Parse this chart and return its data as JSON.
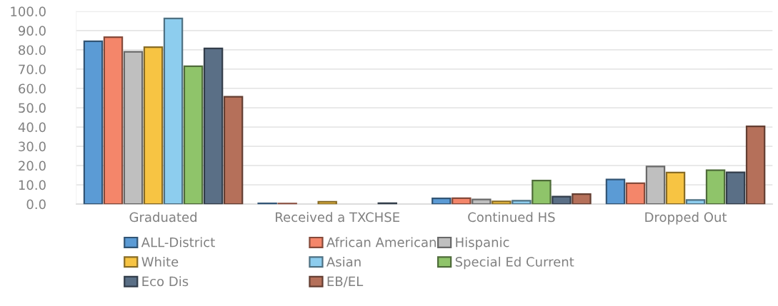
{
  "chart_data": {
    "type": "bar",
    "categories": [
      "Graduated",
      "Received a TXCHSE",
      "Continued HS",
      "Dropped Out"
    ],
    "series": [
      {
        "name": "ALL-District",
        "color": "#5b9bd5",
        "values": [
          84.5,
          0.4,
          3.0,
          12.8
        ]
      },
      {
        "name": "African American",
        "color": "#f4866a",
        "values": [
          86.6,
          0.3,
          3.1,
          10.8
        ]
      },
      {
        "name": "Hispanic",
        "color": "#bfbfbf",
        "values": [
          79.0,
          null,
          2.4,
          19.5
        ]
      },
      {
        "name": "White",
        "color": "#f7c443",
        "values": [
          81.4,
          1.2,
          1.4,
          16.4
        ]
      },
      {
        "name": "Asian",
        "color": "#8dcdee",
        "values": [
          96.3,
          null,
          1.8,
          2.1
        ]
      },
      {
        "name": "Special Ed Current",
        "color": "#8fc46a",
        "values": [
          71.5,
          null,
          12.2,
          17.6
        ]
      },
      {
        "name": "Eco Dis",
        "color": "#5a6f86",
        "values": [
          80.8,
          0.5,
          3.9,
          16.5
        ]
      },
      {
        "name": "EB/EL",
        "color": "#b5705a",
        "values": [
          55.7,
          null,
          5.2,
          40.3
        ]
      }
    ],
    "ylim": [
      0,
      100
    ],
    "yticks": [
      {
        "value": 0,
        "label": "0.0"
      },
      {
        "value": 10,
        "label": "10.0"
      },
      {
        "value": 20,
        "label": "20.0"
      },
      {
        "value": 30,
        "label": "30.0"
      },
      {
        "value": 40,
        "label": "40.0"
      },
      {
        "value": 50,
        "label": "50.0"
      },
      {
        "value": 60,
        "label": "60.0"
      },
      {
        "value": 70,
        "label": "70.0"
      },
      {
        "value": 80,
        "label": "80.0"
      },
      {
        "value": 90,
        "label": "90.0"
      },
      {
        "value": 100,
        "label": "100.0"
      }
    ],
    "grid": "y",
    "legend": "bottom"
  }
}
